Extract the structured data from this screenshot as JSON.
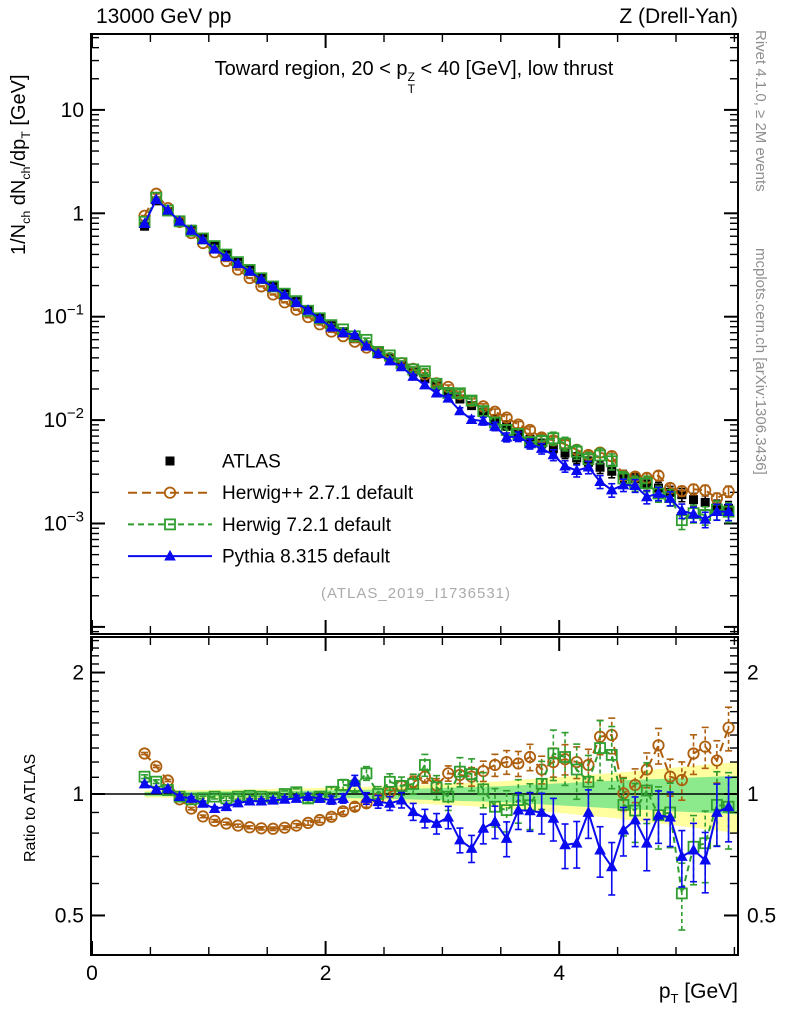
{
  "header": {
    "left": "13000 GeV pp",
    "right": "Z (Drell-Yan)"
  },
  "main_panel": {
    "title": {
      "pre": "Toward region, 20 < p",
      "stack_top": "Z",
      "stack_bottom": "T",
      "post": " < 40 [GeV], low thrust"
    },
    "watermark": "(ATLAS_2019_I1736531)"
  },
  "axis_titles": {
    "y": {
      "a": "1/N",
      "a_sub": "ch",
      "b": " dN",
      "b_sub": "ch",
      "c": "/dp",
      "c_sub": "T",
      "d": " [GeV]"
    },
    "x": {
      "a": "p",
      "a_sub": "T",
      "b": " [GeV]"
    }
  },
  "ratio_panel": {
    "y_label": "Ratio to ATLAS"
  },
  "side_captions": {
    "top": "Rivet 4.1.0, ≥ 2M events",
    "bottom": "mcplots.cern.ch [arXiv:1306.3436]"
  },
  "colors": {
    "atlas": "#000000",
    "herwigpp": "#ad5f0e",
    "herwig7": "#2f9e2f",
    "pythia": "#0a0af0",
    "band_yellow": "#ffffa0",
    "band_green": "#8ce98c",
    "frame": "#000000",
    "caption_gray": "#8f8f8f",
    "watermark_gray": "#ababab"
  },
  "legend": [
    {
      "label": "ATLAS",
      "series": "atlas",
      "marker": "square-filled",
      "line": "none"
    },
    {
      "label": "Herwig++ 2.7.1 default",
      "series": "herwigpp",
      "marker": "circle-open",
      "line": "dashed"
    },
    {
      "label": "Herwig 7.2.1 default",
      "series": "herwig7",
      "marker": "square-open",
      "line": "dashed"
    },
    {
      "label": "Pythia 8.315 default",
      "series": "pythia",
      "marker": "triangle-filled",
      "line": "solid"
    }
  ],
  "chart_data": {
    "type": "scatter",
    "title": "Toward region, 20 < pT(Z) < 40 [GeV], low thrust",
    "xlabel": "p_T [GeV]",
    "ylabel_main": "1/N_ch dN_ch/dp_T [GeV]",
    "ylabel_ratio": "Ratio to ATLAS",
    "x_axis": {
      "min": 0,
      "max": 5.53,
      "major_ticks": [
        0,
        2,
        4
      ],
      "minor_step": 0.5
    },
    "main_y_axis": {
      "scale": "log",
      "min": 8.6e-05,
      "max": 54,
      "tick_labels": [
        {
          "v": 10,
          "m": "10"
        },
        {
          "v": 1,
          "m": "1"
        },
        {
          "v": 0.1,
          "m": "10",
          "e": "−1"
        },
        {
          "v": 0.01,
          "m": "10",
          "e": "−2"
        },
        {
          "v": 0.001,
          "m": "10",
          "e": "−3"
        }
      ]
    },
    "ratio_y_axis": {
      "scale": "log",
      "min": 0.4,
      "max": 2.45,
      "tick_labels": [
        0.5,
        1,
        2
      ],
      "minor_ticks": [
        0.6,
        0.7,
        0.8,
        0.9,
        1.1,
        1.2,
        1.3,
        1.4,
        1.5,
        1.6,
        1.7,
        1.8,
        1.9,
        2.1,
        2.2,
        2.3,
        2.4
      ]
    },
    "bin_width": 0.1,
    "x": [
      0.45,
      0.55,
      0.65,
      0.75,
      0.85,
      0.95,
      1.05,
      1.15,
      1.25,
      1.35,
      1.45,
      1.55,
      1.65,
      1.75,
      1.85,
      1.95,
      2.05,
      2.15,
      2.25,
      2.35,
      2.45,
      2.55,
      2.65,
      2.75,
      2.85,
      2.95,
      3.05,
      3.15,
      3.25,
      3.35,
      3.45,
      3.55,
      3.65,
      3.75,
      3.85,
      3.95,
      4.05,
      4.15,
      4.25,
      4.35,
      4.45,
      4.55,
      4.65,
      4.75,
      4.85,
      4.95,
      5.05,
      5.15,
      5.25,
      5.35,
      5.45
    ],
    "atlas_values": [
      0.75,
      1.32,
      1.04,
      0.85,
      0.7,
      0.585,
      0.489,
      0.409,
      0.342,
      0.286,
      0.239,
      0.2,
      0.167,
      0.14,
      0.117,
      0.098,
      0.0818,
      0.0716,
      0.0617,
      0.0531,
      0.0457,
      0.0394,
      0.0339,
      0.0292,
      0.0251,
      0.0216,
      0.0186,
      0.016,
      0.0138,
      0.0119,
      0.0102,
      0.0088,
      0.0076,
      0.0065,
      0.0059,
      0.0053,
      0.0048,
      0.0043,
      0.0039,
      0.0035,
      0.0032,
      0.0029,
      0.0027,
      0.0024,
      0.0022,
      0.002,
      0.0019,
      0.0017,
      0.0016,
      0.00145,
      0.0014
    ],
    "err_frac": [
      0.008,
      0.008,
      0.008,
      0.009,
      0.009,
      0.01,
      0.01,
      0.01,
      0.011,
      0.011,
      0.012,
      0.013,
      0.014,
      0.015,
      0.017,
      0.019,
      0.021,
      0.024,
      0.027,
      0.03,
      0.033,
      0.036,
      0.04,
      0.044,
      0.048,
      0.053,
      0.058,
      0.064,
      0.07,
      0.077,
      0.084,
      0.09,
      0.095,
      0.1,
      0.105,
      0.11,
      0.115,
      0.12,
      0.125,
      0.13,
      0.135,
      0.125,
      0.128,
      0.132,
      0.135,
      0.14,
      0.145,
      0.15,
      0.155,
      0.16,
      0.165
    ],
    "note": "MC main-panel values = atlas_values[i] * ratio_to_atlas[i]; error bars = value * err_frac[i] * err_scale. Values estimated by reading the published figure.",
    "series": [
      {
        "name": "Herwig++ 2.7.1 default",
        "key": "herwigpp",
        "marker": "circle-open",
        "line": "dashed",
        "err_scale": 0.75,
        "ratio_to_atlas": [
          1.26,
          1.17,
          1.08,
          0.97,
          0.92,
          0.88,
          0.858,
          0.845,
          0.835,
          0.827,
          0.822,
          0.82,
          0.825,
          0.835,
          0.848,
          0.862,
          0.878,
          0.906,
          0.93,
          0.948,
          0.975,
          1.01,
          1.047,
          1.072,
          1.104,
          1.05,
          1.125,
          1.115,
          1.104,
          1.14,
          1.18,
          1.2,
          1.19,
          1.235,
          1.15,
          1.2,
          1.22,
          1.2,
          1.18,
          1.387,
          1.4,
          1.004,
          1.053,
          1.15,
          1.32,
          1.104,
          1.083,
          1.26,
          1.31,
          1.21,
          1.46
        ]
      },
      {
        "name": "Herwig 7.2.1 default",
        "key": "herwig7",
        "marker": "square-open",
        "line": "dashed",
        "err_scale": 1.3,
        "ratio_to_atlas": [
          1.104,
          1.073,
          1.023,
          0.985,
          0.97,
          0.975,
          0.985,
          0.975,
          0.985,
          0.99,
          0.985,
          0.98,
          1.0,
          1.01,
          0.975,
          0.985,
          1.013,
          1.053,
          1.047,
          1.125,
          1.0,
          1.072,
          1.047,
          1.059,
          1.18,
          1.039,
          0.985,
          1.136,
          1.12,
          1.027,
          0.93,
          0.912,
          0.966,
          0.938,
          1.06,
          1.26,
          1.235,
          1.15,
          1.072,
          1.3,
          1.25,
          0.94,
          0.91,
          1.02,
          0.886,
          0.9,
          0.567,
          0.74,
          0.755,
          0.94,
          0.93
        ]
      },
      {
        "name": "Pythia 8.315 default",
        "key": "pythia",
        "marker": "triangle-filled",
        "line": "solid",
        "err_scale": 1.1,
        "ratio_to_atlas": [
          1.059,
          1.027,
          1.03,
          0.985,
          0.975,
          0.948,
          0.92,
          0.93,
          0.95,
          0.96,
          0.96,
          0.965,
          0.97,
          0.975,
          0.985,
          0.975,
          0.966,
          0.975,
          1.08,
          0.975,
          0.957,
          0.948,
          0.966,
          0.904,
          0.87,
          0.845,
          0.876,
          0.769,
          0.733,
          0.822,
          0.854,
          0.776,
          0.912,
          0.908,
          0.9,
          0.87,
          0.748,
          0.755,
          0.9,
          0.726,
          0.66,
          0.814,
          0.862,
          0.755,
          0.886,
          0.876,
          0.7,
          0.726,
          0.686,
          0.9,
          0.93
        ]
      }
    ],
    "atlas_band": {
      "note": "ATLAS uncertainty band around ratio=1; half-widths (fractional), inner=green stat, outer=yellow total",
      "breakpoints": [
        {
          "pt": 0.45,
          "yellow": 0.02,
          "green": 0.012
        },
        {
          "pt": 1.5,
          "yellow": 0.028,
          "green": 0.016
        },
        {
          "pt": 2.5,
          "yellow": 0.045,
          "green": 0.026
        },
        {
          "pt": 3.5,
          "yellow": 0.075,
          "green": 0.045
        },
        {
          "pt": 4.5,
          "yellow": 0.13,
          "green": 0.08
        },
        {
          "pt": 5.53,
          "yellow": 0.2,
          "green": 0.11
        }
      ]
    }
  }
}
